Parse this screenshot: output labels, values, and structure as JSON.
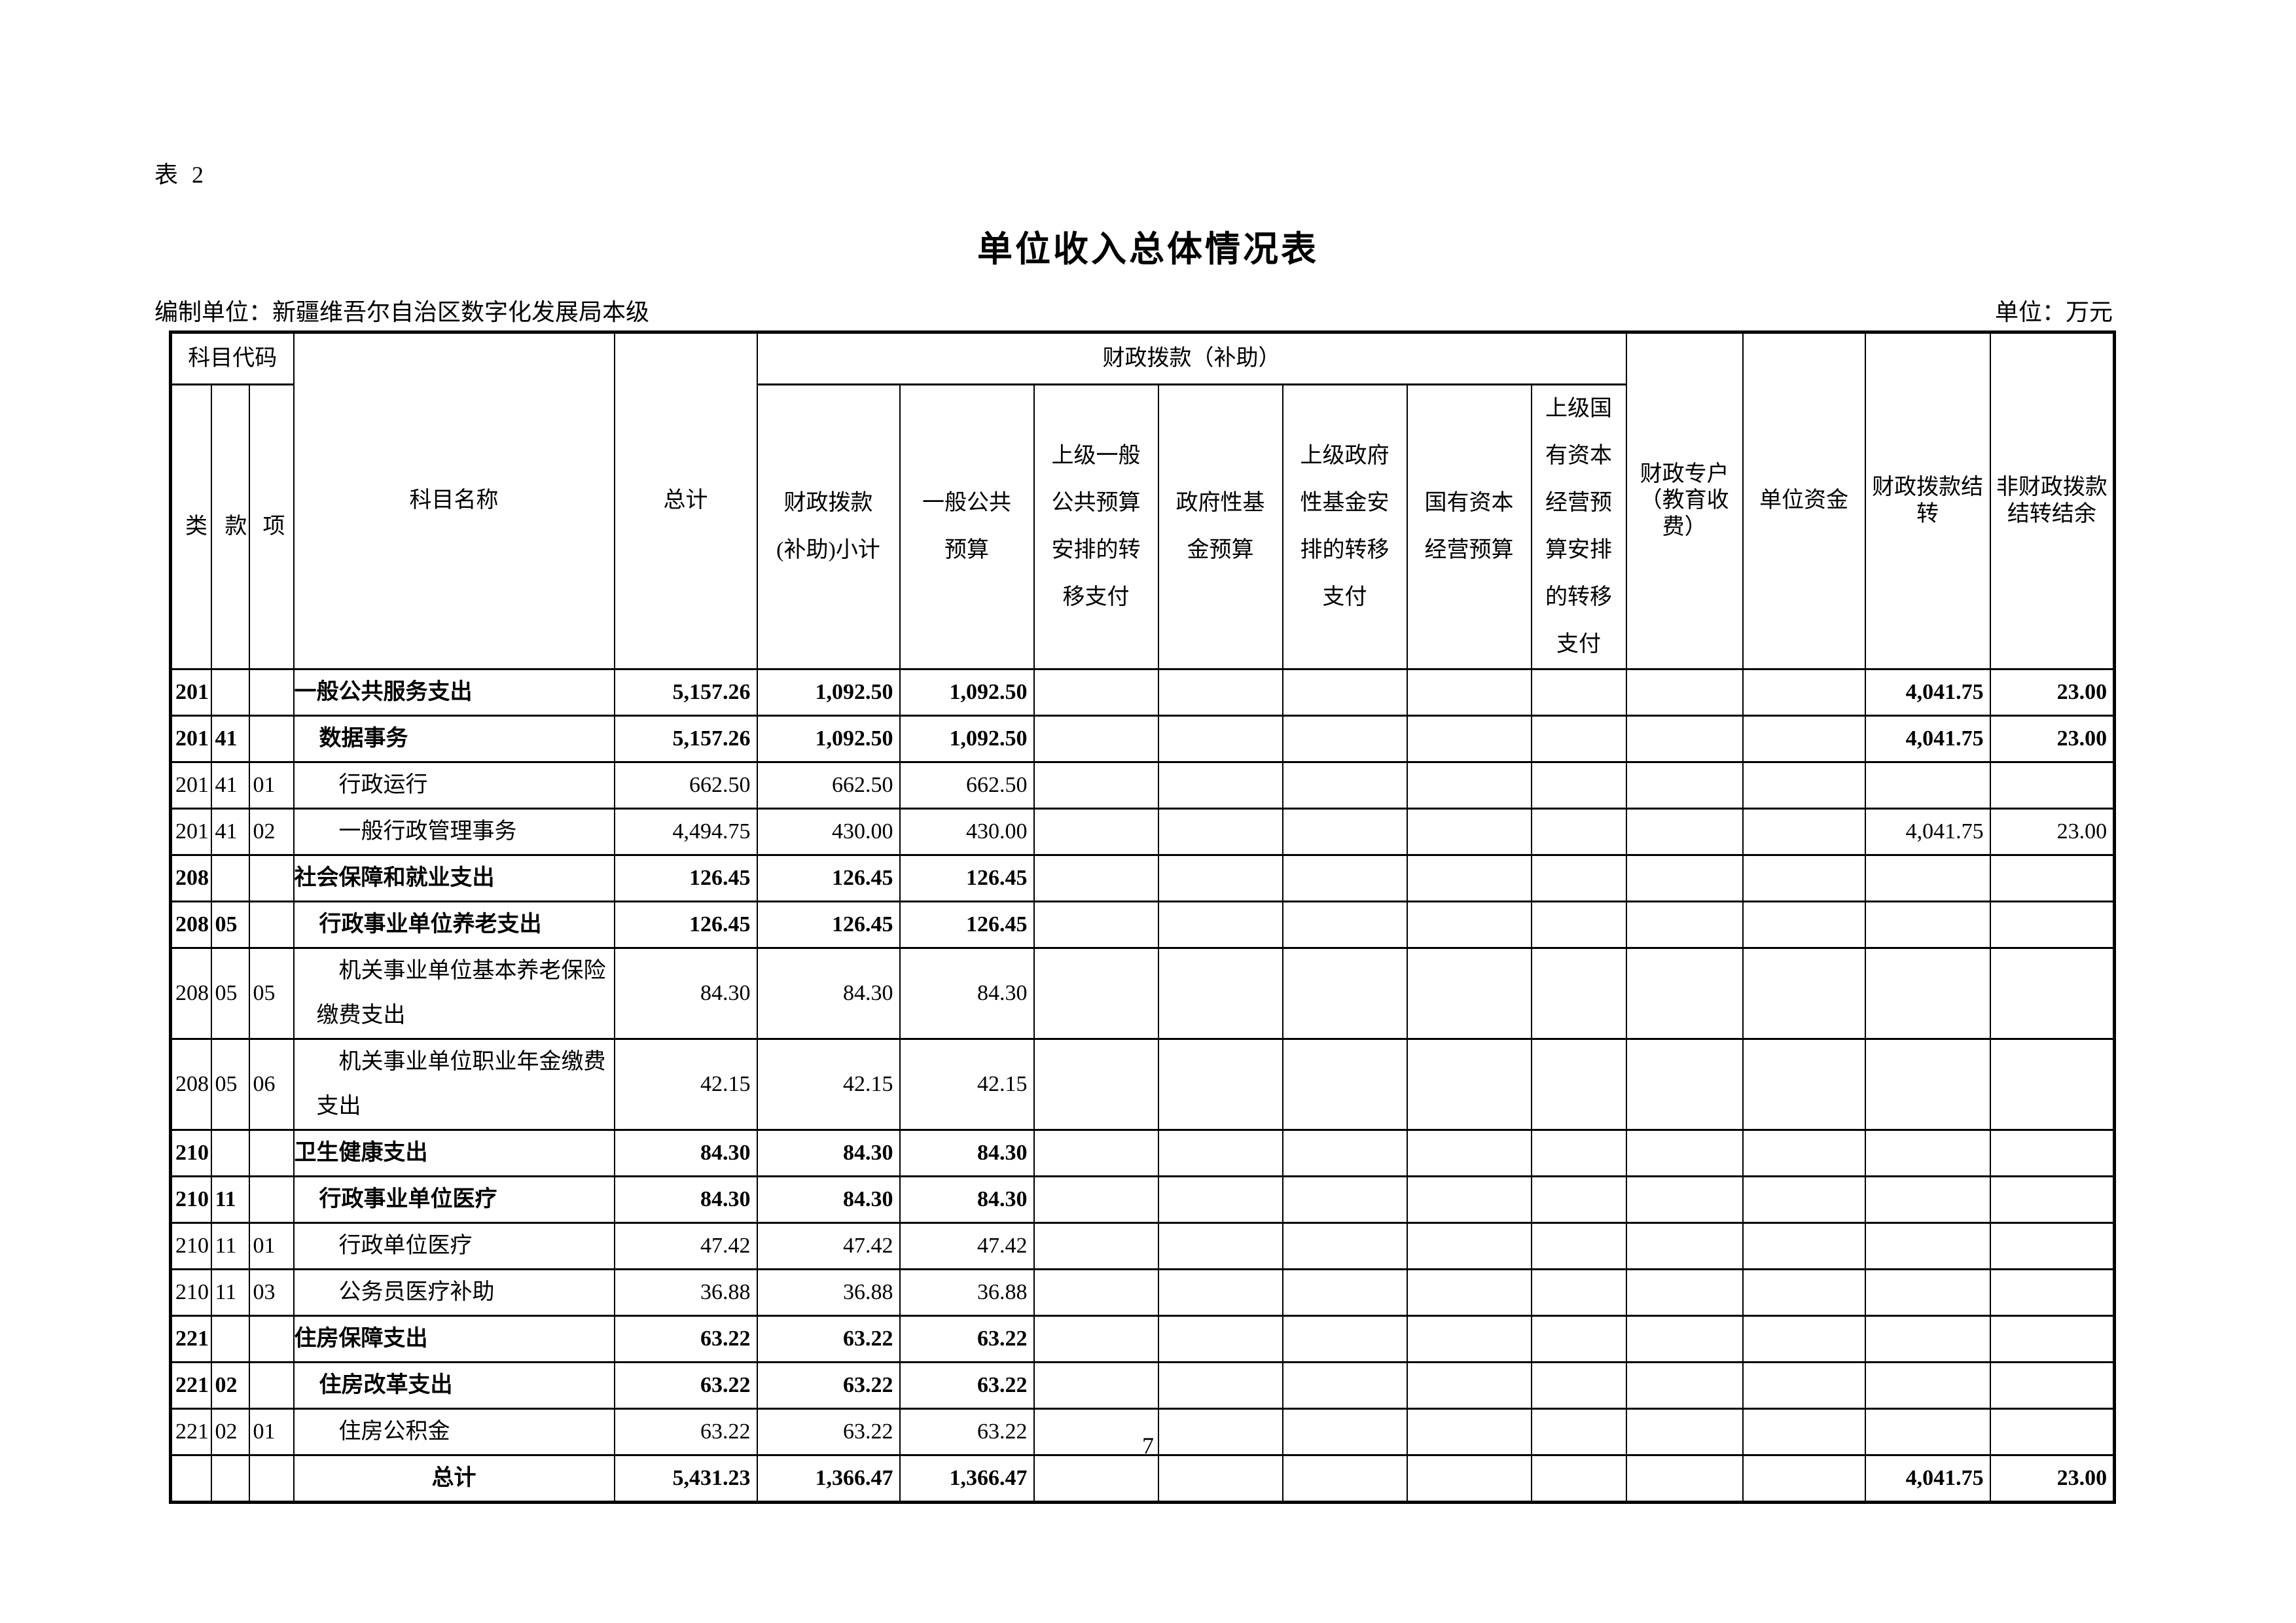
{
  "page": {
    "table_label": "表 2",
    "title": "单位收入总体情况表",
    "prepared_by": "编制单位：新疆维吾尔自治区数字化发展局本级",
    "unit_note": "单位：万元",
    "page_number": "7"
  },
  "table": {
    "header": {
      "subject_code": "科目代码",
      "code_cols": [
        "类",
        "款",
        "项"
      ],
      "subject_name": "科目名称",
      "total": "总计",
      "fiscal_group": "财政拨款（补助）",
      "fiscal_cols": [
        "财政拨款(补助)小计",
        "一般公共预算",
        "上级一般公共预算安排的转移支付",
        "政府性基金预算",
        "上级政府性基金安排的转移支付",
        "国有资本经营预算",
        "上级国有资本经营预算安排的转移支付"
      ],
      "other_cols": [
        "财政专户（教育收费）",
        "单位资金",
        "财政拨款结转",
        "非财政拨款结转结余"
      ]
    },
    "rows": [
      {
        "code": "201",
        "sub": "",
        "item": "",
        "name": "一般公共服务支出",
        "level": 1,
        "bold": true,
        "tall": false,
        "values": [
          "5,157.26",
          "1,092.50",
          "1,092.50",
          "",
          "",
          "",
          "",
          "",
          "",
          "",
          "4,041.75",
          "23.00"
        ]
      },
      {
        "code": "201",
        "sub": "41",
        "item": "",
        "name": "数据事务",
        "level": 2,
        "bold": true,
        "tall": false,
        "values": [
          "5,157.26",
          "1,092.50",
          "1,092.50",
          "",
          "",
          "",
          "",
          "",
          "",
          "",
          "4,041.75",
          "23.00"
        ]
      },
      {
        "code": "201",
        "sub": "41",
        "item": "01",
        "name": "行政运行",
        "level": 3,
        "bold": false,
        "tall": false,
        "values": [
          "662.50",
          "662.50",
          "662.50",
          "",
          "",
          "",
          "",
          "",
          "",
          "",
          "",
          ""
        ]
      },
      {
        "code": "201",
        "sub": "41",
        "item": "02",
        "name": "一般行政管理事务",
        "level": 3,
        "bold": false,
        "tall": false,
        "values": [
          "4,494.75",
          "430.00",
          "430.00",
          "",
          "",
          "",
          "",
          "",
          "",
          "",
          "4,041.75",
          "23.00"
        ]
      },
      {
        "code": "208",
        "sub": "",
        "item": "",
        "name": "社会保障和就业支出",
        "level": 1,
        "bold": true,
        "tall": false,
        "values": [
          "126.45",
          "126.45",
          "126.45",
          "",
          "",
          "",
          "",
          "",
          "",
          "",
          "",
          ""
        ]
      },
      {
        "code": "208",
        "sub": "05",
        "item": "",
        "name": "行政事业单位养老支出",
        "level": 2,
        "bold": true,
        "tall": false,
        "values": [
          "126.45",
          "126.45",
          "126.45",
          "",
          "",
          "",
          "",
          "",
          "",
          "",
          "",
          ""
        ]
      },
      {
        "code": "208",
        "sub": "05",
        "item": "05",
        "name": "机关事业单位基本养老保险缴费支出",
        "level": 3,
        "bold": false,
        "tall": true,
        "values": [
          "84.30",
          "84.30",
          "84.30",
          "",
          "",
          "",
          "",
          "",
          "",
          "",
          "",
          ""
        ]
      },
      {
        "code": "208",
        "sub": "05",
        "item": "06",
        "name": "机关事业单位职业年金缴费支出",
        "level": 3,
        "bold": false,
        "tall": false,
        "values": [
          "42.15",
          "42.15",
          "42.15",
          "",
          "",
          "",
          "",
          "",
          "",
          "",
          "",
          ""
        ]
      },
      {
        "code": "210",
        "sub": "",
        "item": "",
        "name": "卫生健康支出",
        "level": 1,
        "bold": true,
        "tall": false,
        "values": [
          "84.30",
          "84.30",
          "84.30",
          "",
          "",
          "",
          "",
          "",
          "",
          "",
          "",
          ""
        ]
      },
      {
        "code": "210",
        "sub": "11",
        "item": "",
        "name": "行政事业单位医疗",
        "level": 2,
        "bold": true,
        "tall": false,
        "values": [
          "84.30",
          "84.30",
          "84.30",
          "",
          "",
          "",
          "",
          "",
          "",
          "",
          "",
          ""
        ]
      },
      {
        "code": "210",
        "sub": "11",
        "item": "01",
        "name": "行政单位医疗",
        "level": 3,
        "bold": false,
        "tall": false,
        "values": [
          "47.42",
          "47.42",
          "47.42",
          "",
          "",
          "",
          "",
          "",
          "",
          "",
          "",
          ""
        ]
      },
      {
        "code": "210",
        "sub": "11",
        "item": "03",
        "name": "公务员医疗补助",
        "level": 3,
        "bold": false,
        "tall": false,
        "values": [
          "36.88",
          "36.88",
          "36.88",
          "",
          "",
          "",
          "",
          "",
          "",
          "",
          "",
          ""
        ]
      },
      {
        "code": "221",
        "sub": "",
        "item": "",
        "name": "住房保障支出",
        "level": 1,
        "bold": true,
        "tall": false,
        "values": [
          "63.22",
          "63.22",
          "63.22",
          "",
          "",
          "",
          "",
          "",
          "",
          "",
          "",
          ""
        ]
      },
      {
        "code": "221",
        "sub": "02",
        "item": "",
        "name": "住房改革支出",
        "level": 2,
        "bold": true,
        "tall": false,
        "values": [
          "63.22",
          "63.22",
          "63.22",
          "",
          "",
          "",
          "",
          "",
          "",
          "",
          "",
          ""
        ]
      },
      {
        "code": "221",
        "sub": "02",
        "item": "01",
        "name": "住房公积金",
        "level": 3,
        "bold": false,
        "tall": false,
        "values": [
          "63.22",
          "63.22",
          "63.22",
          "",
          "",
          "",
          "",
          "",
          "",
          "",
          "",
          ""
        ]
      },
      {
        "code": "",
        "sub": "",
        "item": "",
        "name": "总计",
        "level": 0,
        "bold": true,
        "tall": false,
        "values": [
          "5,431.23",
          "1,366.47",
          "1,366.47",
          "",
          "",
          "",
          "",
          "",
          "",
          "",
          "4,041.75",
          "23.00"
        ]
      }
    ]
  }
}
